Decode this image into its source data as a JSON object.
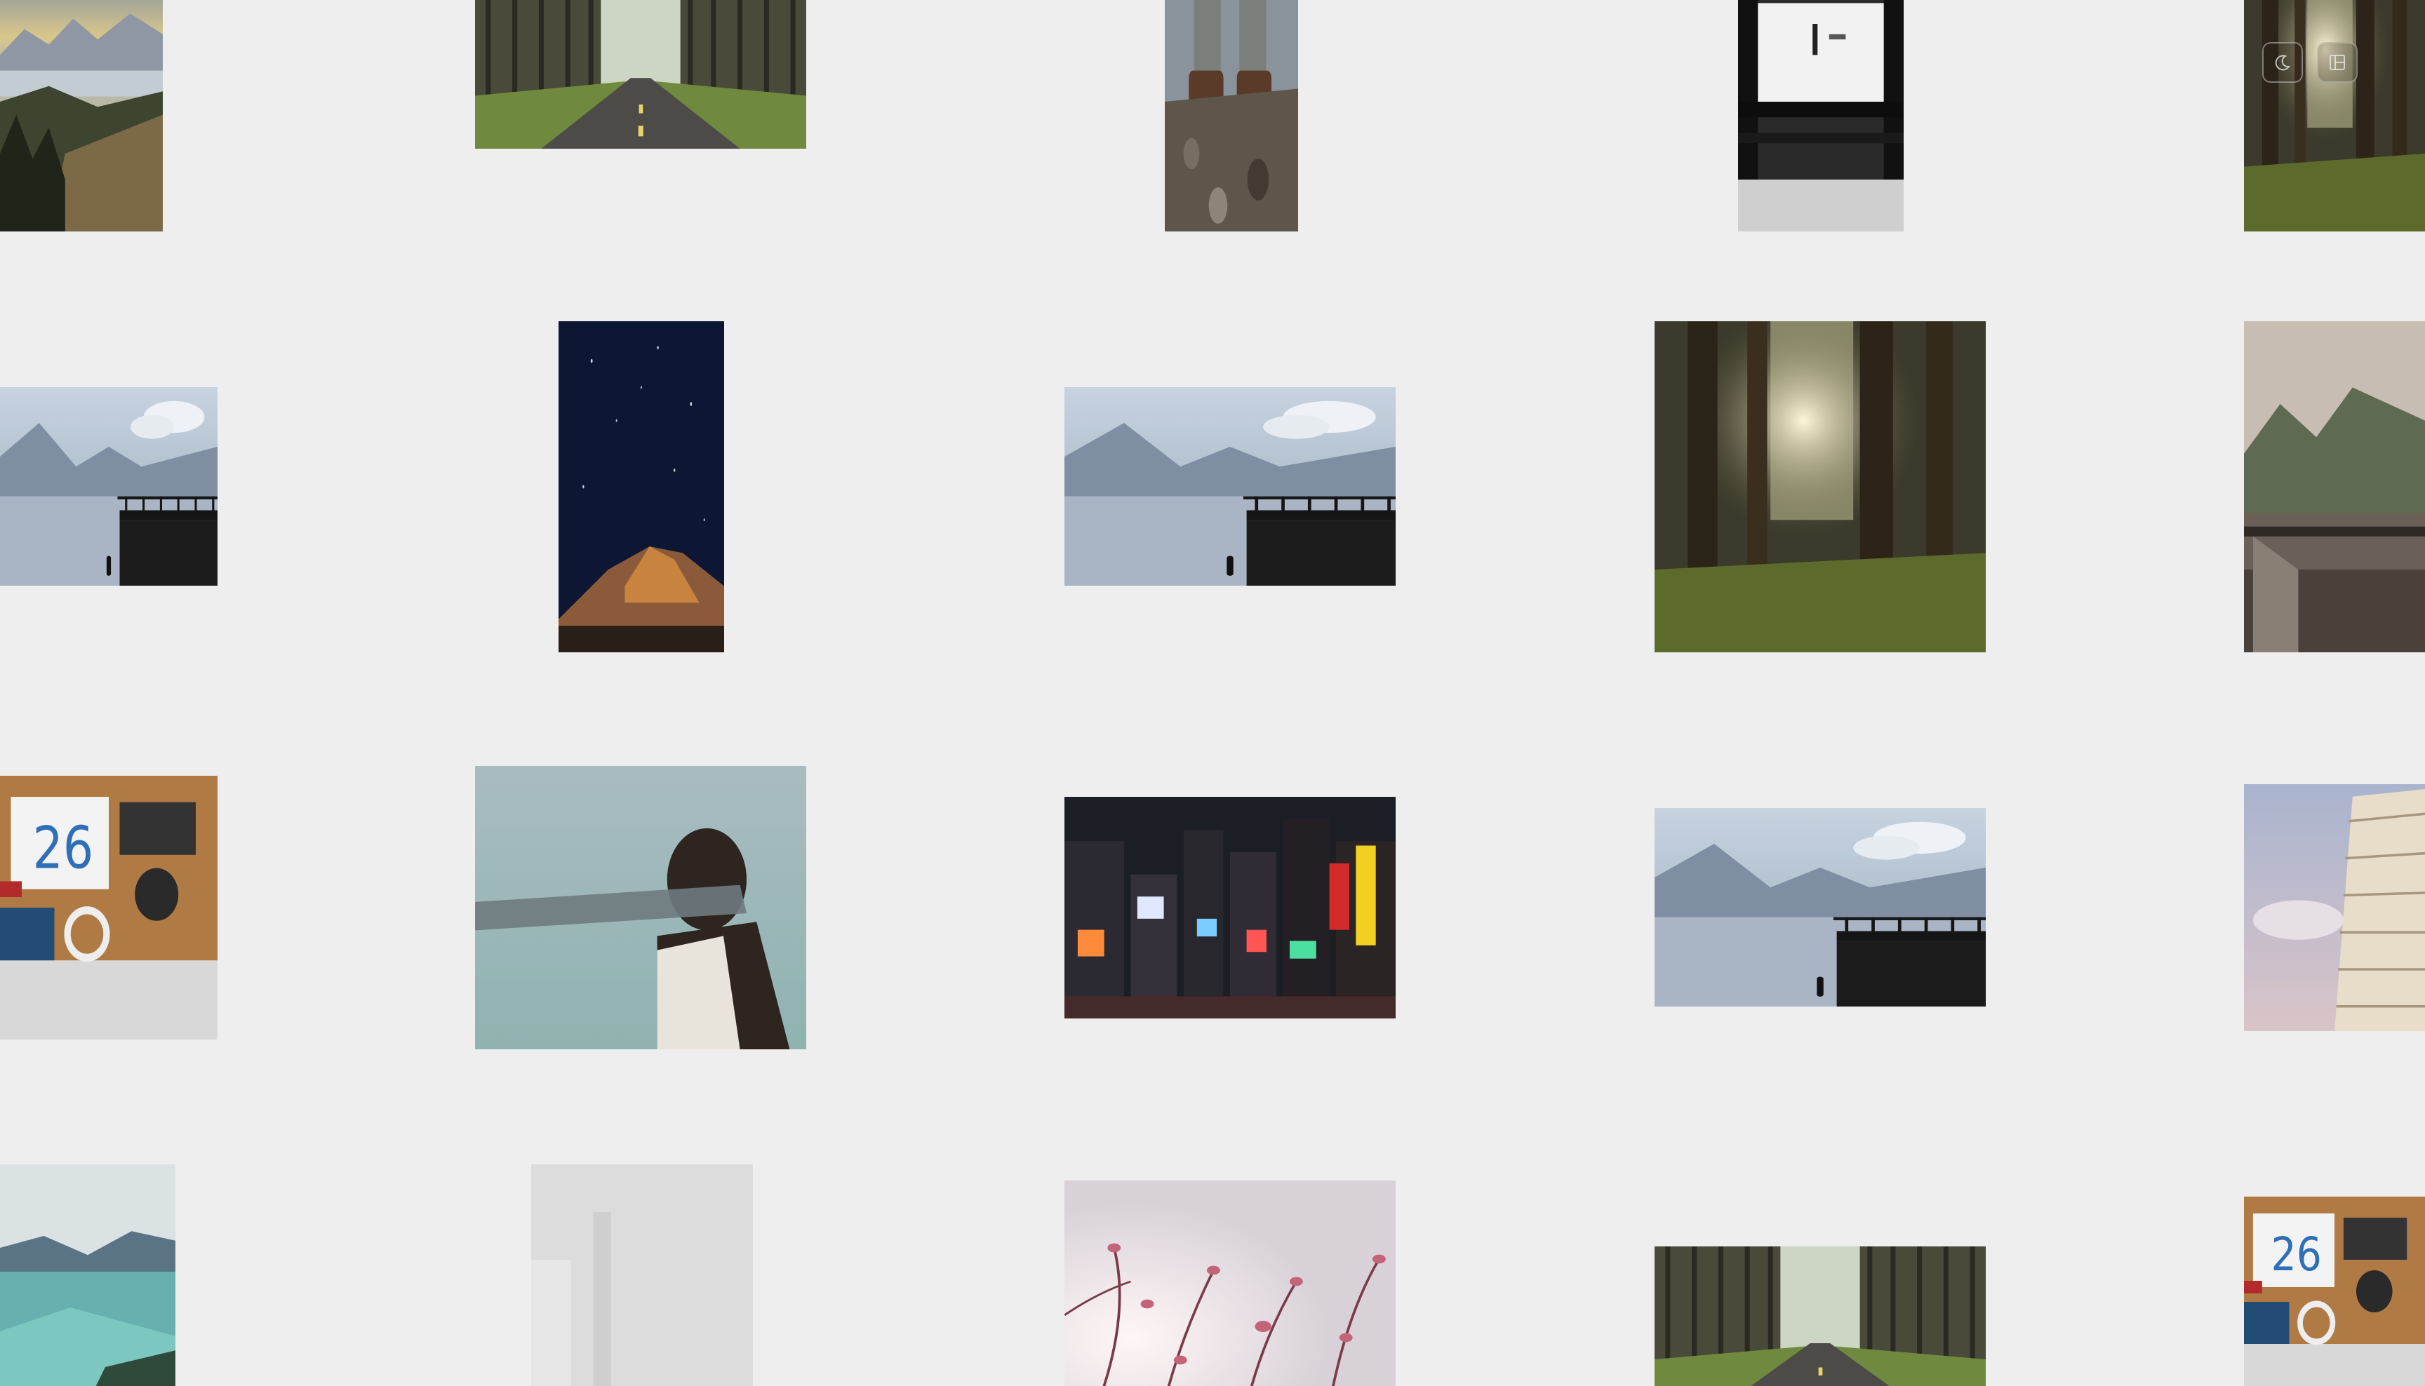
{
  "toolbar": {
    "items": [
      {
        "name": "theme-toggle-button",
        "icon": "moon-icon"
      },
      {
        "name": "layout-toggle-button",
        "icon": "panel-icon"
      }
    ]
  },
  "gallery": {
    "tiles": [
      {
        "name": "photo-mountain-lake-sunset",
        "scene": "mountain-sunset"
      },
      {
        "name": "photo-forest-road",
        "scene": "forest-road"
      },
      {
        "name": "photo-hiking-boots",
        "scene": "boots"
      },
      {
        "name": "photo-subway-platform",
        "scene": "subway"
      },
      {
        "name": "photo-forest-sunlight-top",
        "scene": "forest-sun"
      },
      {
        "name": "photo-lake-pier-1",
        "scene": "pier"
      },
      {
        "name": "photo-night-sky-rock",
        "scene": "night"
      },
      {
        "name": "photo-lake-pier-2",
        "scene": "pier"
      },
      {
        "name": "photo-forest-sunlight",
        "scene": "forest-sun"
      },
      {
        "name": "photo-misty-balcony",
        "scene": "misty"
      },
      {
        "name": "photo-desk-flatlay",
        "scene": "desk"
      },
      {
        "name": "photo-blindfold-woman",
        "scene": "blindfold"
      },
      {
        "name": "photo-times-square",
        "scene": "city"
      },
      {
        "name": "photo-lake-pier-3",
        "scene": "pier"
      },
      {
        "name": "photo-leaning-tower",
        "scene": "tower"
      },
      {
        "name": "photo-turquoise-lake",
        "scene": "turquoise"
      },
      {
        "name": "photo-foggy-white",
        "scene": "foggy"
      },
      {
        "name": "photo-pink-blossoms",
        "scene": "blossoms"
      },
      {
        "name": "photo-forest-road-2",
        "scene": "forest-road"
      },
      {
        "name": "photo-desk-flatlay-2",
        "scene": "desk"
      }
    ]
  }
}
